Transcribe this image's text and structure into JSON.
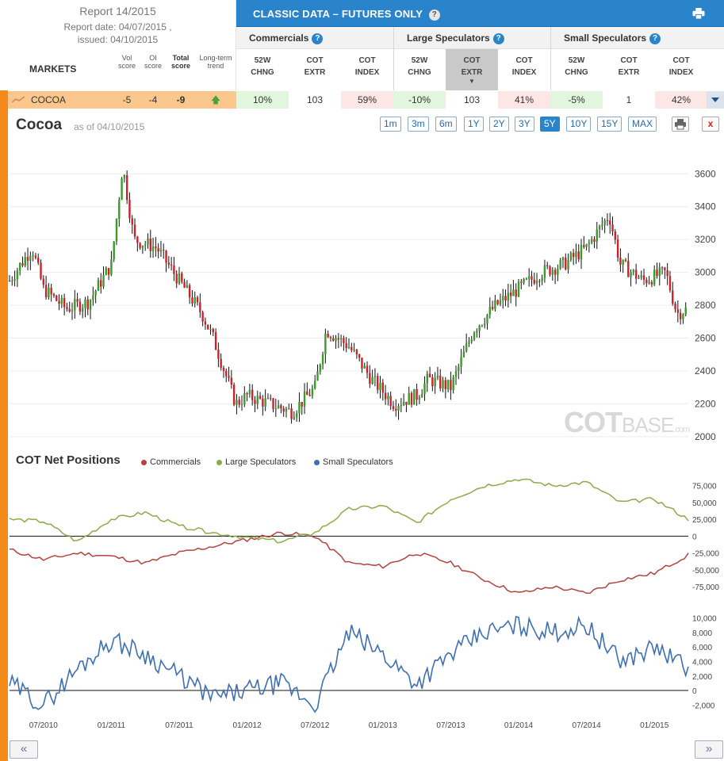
{
  "report": {
    "title": "Report 14/2015",
    "report_date": "Report date: 04/07/2015 ,",
    "issued": "issued: 04/10/2015"
  },
  "headers": {
    "markets": "MARKETS",
    "vol_score": [
      "Vol",
      "score"
    ],
    "oi_score": [
      "OI",
      "score"
    ],
    "total_score": [
      "Total",
      "score"
    ],
    "long_term": [
      "Long-term",
      "trend"
    ]
  },
  "classic": {
    "title": "CLASSIC DATA – FUTURES ONLY",
    "groups": [
      "Commercials",
      "Large Speculators",
      "Small Speculators"
    ],
    "sub": [
      [
        "52W",
        "CHNG"
      ],
      [
        "COT",
        "EXTR"
      ],
      [
        "COT",
        "INDEX"
      ]
    ]
  },
  "row": {
    "name": "COCOA",
    "vol": "-5",
    "oi": "-4",
    "total": "-9",
    "comm": [
      "10%",
      "103",
      "59%"
    ],
    "large": [
      "-10%",
      "103",
      "41%"
    ],
    "small": [
      "-5%",
      "1",
      "42%"
    ]
  },
  "chart_header": {
    "title": "Cocoa",
    "as_of": "as of 04/10/2015",
    "ranges": [
      "1m",
      "3m",
      "6m",
      "1Y",
      "2Y",
      "3Y",
      "5Y",
      "10Y",
      "15Y",
      "MAX"
    ],
    "active_range": "5Y"
  },
  "watermark": {
    "main": "COT",
    "rest": "BASE",
    "dom": ".com"
  },
  "cot": {
    "title": "COT Net Positions",
    "legend": [
      "Commercials",
      "Large Speculators",
      "Small Speculators"
    ]
  },
  "colors": {
    "commercials": "#b5423c",
    "large": "#8aab4a",
    "small": "#3e6fb5",
    "up": "#3a9a2a",
    "down": "#c8232c",
    "accent": "#2a84cc",
    "strip": "#f38a1a"
  },
  "chart_data": [
    {
      "type": "candlestick",
      "title": "Cocoa",
      "y_ticks": [
        2000,
        2200,
        2400,
        2600,
        2800,
        3000,
        3200,
        3400,
        3600
      ],
      "ylim": [
        1980,
        3780
      ],
      "x_range": [
        "2010-04",
        "2015-04"
      ],
      "x": [
        "2010-04",
        "2010-06",
        "2010-07",
        "2010-09",
        "2010-11",
        "2011-01",
        "2011-02",
        "2011-03",
        "2011-05",
        "2011-07",
        "2011-09",
        "2011-10",
        "2011-12",
        "2012-01",
        "2012-03",
        "2012-05",
        "2012-07",
        "2012-08",
        "2012-10",
        "2012-12",
        "2013-02",
        "2013-04",
        "2013-05",
        "2013-07",
        "2013-09",
        "2013-11",
        "2014-01",
        "2014-03",
        "2014-05",
        "2014-07",
        "2014-08",
        "2014-09",
        "2014-10",
        "2014-12",
        "2015-02",
        "2015-03",
        "2015-04"
      ],
      "close": [
        2950,
        3150,
        2900,
        2780,
        2820,
        3050,
        3650,
        3200,
        3150,
        2950,
        2750,
        2600,
        2200,
        2250,
        2200,
        2150,
        2300,
        2650,
        2550,
        2350,
        2200,
        2250,
        2350,
        2300,
        2650,
        2800,
        2900,
        3000,
        3050,
        3150,
        3250,
        3350,
        3050,
        2950,
        3000,
        2750,
        2780
      ]
    },
    {
      "type": "line",
      "title": "COT Net Positions",
      "y_ticks": [
        -75000,
        -50000,
        -25000,
        0,
        25000,
        50000,
        75000
      ],
      "ylim": [
        -95000,
        90000
      ],
      "x": [
        "2010-04",
        "2010-07",
        "2010-10",
        "2011-01",
        "2011-04",
        "2011-07",
        "2011-10",
        "2012-01",
        "2012-04",
        "2012-07",
        "2012-10",
        "2013-01",
        "2013-04",
        "2013-07",
        "2013-10",
        "2014-01",
        "2014-04",
        "2014-07",
        "2014-10",
        "2015-01",
        "2015-04"
      ],
      "series": [
        {
          "name": "Commercials",
          "values": [
            -20000,
            -35000,
            -25000,
            -30000,
            -40000,
            -25000,
            -15000,
            -5000,
            5000,
            0,
            -40000,
            -45000,
            -25000,
            -40000,
            -65000,
            -85000,
            -75000,
            -85000,
            -65000,
            -55000,
            -28000
          ]
        },
        {
          "name": "Large Speculators",
          "values": [
            25000,
            22000,
            -8000,
            25000,
            35000,
            15000,
            5000,
            -2000,
            -8000,
            5000,
            40000,
            45000,
            20000,
            55000,
            75000,
            85000,
            75000,
            80000,
            50000,
            55000,
            25000
          ]
        }
      ]
    },
    {
      "type": "line",
      "y_ticks": [
        -2000,
        0,
        2000,
        4000,
        6000,
        8000,
        10000
      ],
      "ylim": [
        -3500,
        11500
      ],
      "x": [
        "2010-04",
        "2010-07",
        "2010-10",
        "2011-01",
        "2011-04",
        "2011-07",
        "2011-10",
        "2012-01",
        "2012-04",
        "2012-07",
        "2012-10",
        "2013-01",
        "2013-04",
        "2013-07",
        "2013-10",
        "2014-01",
        "2014-04",
        "2014-07",
        "2014-10",
        "2015-01",
        "2015-04"
      ],
      "x_ticks": [
        "07/2010",
        "01/2011",
        "07/2011",
        "01/2012",
        "07/2012",
        "01/2013",
        "07/2013",
        "01/2014",
        "07/2014",
        "01/2015"
      ],
      "series": [
        {
          "name": "Small Speculators",
          "values": [
            1000,
            -2000,
            3000,
            7000,
            5000,
            2000,
            -1000,
            0,
            1000,
            -2000,
            8000,
            5000,
            1000,
            5000,
            8000,
            9000,
            8000,
            9000,
            4000,
            6000,
            3000
          ]
        }
      ]
    }
  ]
}
